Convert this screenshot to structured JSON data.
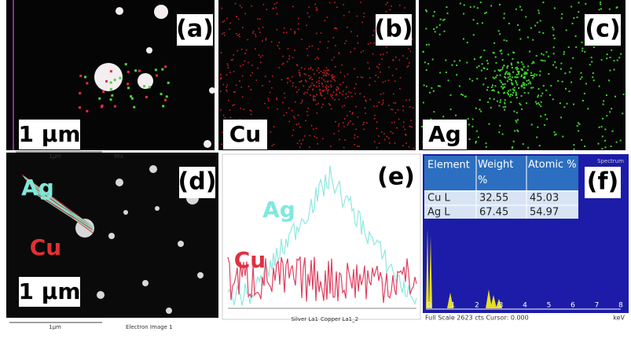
{
  "panels": {
    "a": {
      "label": "(a)",
      "scale": "1 μm",
      "scale_bar": "1μm",
      "caption": "Mix"
    },
    "b": {
      "label": "(b)",
      "element": "Cu"
    },
    "c": {
      "label": "(c)",
      "element": "Ag"
    },
    "d": {
      "label": "(d)",
      "ag": "Ag",
      "cu": "Cu",
      "scale": "1 μm",
      "scale_bar": "1μm",
      "caption": "Electron Image 1"
    },
    "e": {
      "label": "(e)",
      "ag": "Ag",
      "cu": "Cu",
      "legend": [
        "Silver La1",
        "Copper La1_2"
      ]
    },
    "f": {
      "label": "(f)",
      "spectrum_label": "Spectrum",
      "table": {
        "header": [
          "Element",
          "Weight %",
          "Atomic %"
        ],
        "rows": [
          [
            "Cu L",
            "32.55",
            "45.03"
          ],
          [
            "Ag L",
            "67.45",
            "54.97"
          ]
        ]
      },
      "xticks": [
        "0",
        "1",
        "2",
        "3",
        "4",
        "5",
        "6",
        "7",
        "8"
      ],
      "x_unit": "keV",
      "footer": "Full Scale 2623 cts Cursor: 0.000"
    }
  }
}
